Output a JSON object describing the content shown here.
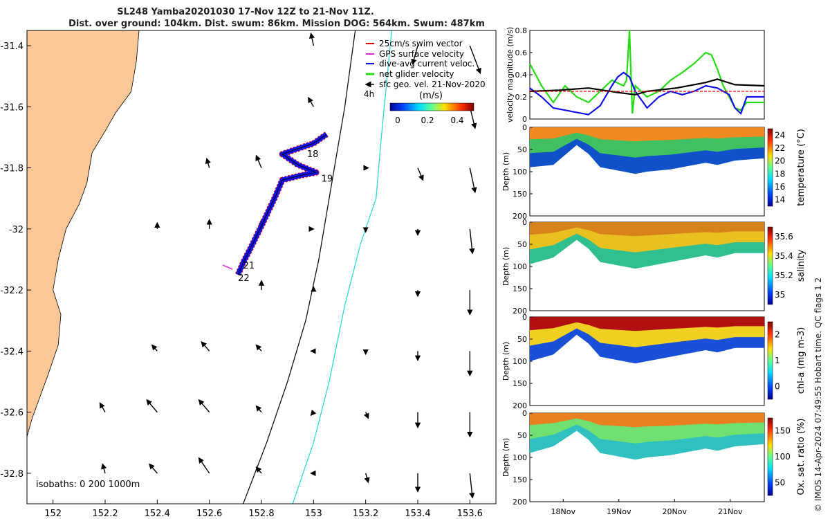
{
  "title_line1": "SL248 Yamba20201030 17-Nov 12Z to 21-Nov 11Z.",
  "title_line2": "Dist. over ground: 104km. Dist. swum: 86km. Mission DOG: 564km. Swum: 487km",
  "credit": "© IMOS 14-Apr-2024 07:49:55 Hobart time. QC flags 1  2",
  "colors": {
    "land": "#f9c896",
    "swim": "#e8000b",
    "gps": "#e020e0",
    "current": "#1010e8",
    "net": "#22dd11",
    "sfc": "#000000",
    "isobath": "#111111",
    "isobath1000": "#30d8d8"
  },
  "chart_data": [
    {
      "type": "map",
      "xlim": [
        151.9,
        153.7
      ],
      "ylim": [
        -32.9,
        -31.35
      ],
      "xticks": [
        "152",
        "152.2",
        "152.4",
        "152.6",
        "152.8",
        "153",
        "153.2",
        "153.4",
        "153.6"
      ],
      "yticks": [
        "-31.4",
        "-31.6",
        "-31.8",
        "-32",
        "-32.2",
        "-32.4",
        "-32.6",
        "-32.8"
      ],
      "legend": [
        "25cm/s swim vector",
        "GPS surface velocity",
        "dive-avg current veloc.",
        "net glider velocity",
        "sfc geo. vel. 21-Nov-2020"
      ],
      "legend_scale_label": "4h",
      "colorbar": {
        "label": "(m/s)",
        "ticks": [
          "0",
          "0.2",
          "0.4"
        ]
      },
      "isobath_note": "isobaths: 0   200  1000m",
      "track_labels": [
        {
          "text": "18",
          "lon": 152.975,
          "lat": -31.765
        },
        {
          "text": "19",
          "lon": 153.03,
          "lat": -31.845
        },
        {
          "text": "21",
          "lon": 152.73,
          "lat": -32.13
        },
        {
          "text": "22",
          "lon": 152.71,
          "lat": -32.17
        }
      ],
      "glider_track": [
        [
          153.05,
          -31.69
        ],
        [
          153.0,
          -31.72
        ],
        [
          152.93,
          -31.74
        ],
        [
          152.88,
          -31.755
        ],
        [
          152.94,
          -31.79
        ],
        [
          153.01,
          -31.815
        ],
        [
          152.95,
          -31.825
        ],
        [
          152.88,
          -31.84
        ],
        [
          152.85,
          -31.9
        ],
        [
          152.8,
          -31.99
        ],
        [
          152.76,
          -32.06
        ],
        [
          152.73,
          -32.11
        ],
        [
          152.71,
          -32.15
        ]
      ],
      "isobath_200": [
        [
          153.16,
          -31.35
        ],
        [
          153.12,
          -31.6
        ],
        [
          153.06,
          -31.9
        ],
        [
          153.02,
          -32.1
        ],
        [
          152.97,
          -32.3
        ],
        [
          152.9,
          -32.5
        ],
        [
          152.82,
          -32.7
        ],
        [
          152.73,
          -32.9
        ]
      ],
      "isobath_1000": [
        [
          153.3,
          -31.35
        ],
        [
          153.26,
          -31.7
        ],
        [
          153.24,
          -31.9
        ],
        [
          153.18,
          -32.05
        ],
        [
          153.12,
          -32.25
        ],
        [
          153.06,
          -32.5
        ],
        [
          153.0,
          -32.7
        ],
        [
          152.92,
          -32.9
        ]
      ],
      "coastline": [
        [
          151.9,
          -31.35
        ],
        [
          152.33,
          -31.35
        ],
        [
          152.32,
          -31.45
        ],
        [
          152.3,
          -31.55
        ],
        [
          152.24,
          -31.62
        ],
        [
          152.2,
          -31.68
        ],
        [
          152.15,
          -31.75
        ],
        [
          152.13,
          -31.85
        ],
        [
          152.1,
          -31.92
        ],
        [
          152.05,
          -32.0
        ],
        [
          152.02,
          -32.1
        ],
        [
          152.0,
          -32.2
        ],
        [
          152.03,
          -32.28
        ],
        [
          152.02,
          -32.38
        ],
        [
          151.98,
          -32.48
        ],
        [
          151.95,
          -32.55
        ],
        [
          151.92,
          -32.62
        ],
        [
          151.9,
          -32.68
        ]
      ],
      "current_arrows": [
        [
          153.0,
          -31.4,
          -0.01,
          0.04
        ],
        [
          153.4,
          -31.4,
          -0.02,
          -0.06
        ],
        [
          153.6,
          -31.4,
          0.04,
          -0.09
        ],
        [
          153.0,
          -31.6,
          -0.02,
          0.03
        ],
        [
          153.6,
          -31.6,
          0.02,
          -0.07
        ],
        [
          152.6,
          -31.8,
          -0.01,
          0.03
        ],
        [
          152.8,
          -31.8,
          -0.02,
          0.04
        ],
        [
          153.2,
          -31.8,
          0.01,
          0.0
        ],
        [
          153.4,
          -31.8,
          0.02,
          -0.04
        ],
        [
          153.6,
          -31.8,
          0.02,
          -0.08
        ],
        [
          152.4,
          -32.0,
          0.0,
          0.02
        ],
        [
          152.6,
          -32.0,
          0.0,
          0.03
        ],
        [
          152.8,
          -32.0,
          0.0,
          0.03
        ],
        [
          153.0,
          -32.0,
          0.0,
          0.0
        ],
        [
          153.2,
          -32.0,
          0.0,
          -0.01
        ],
        [
          153.4,
          -32.0,
          0.0,
          -0.02
        ],
        [
          153.6,
          -32.0,
          0.01,
          -0.08
        ],
        [
          152.8,
          -32.2,
          0.0,
          0.03
        ],
        [
          153.0,
          -32.2,
          0.0,
          0.01
        ],
        [
          153.4,
          -32.2,
          0.0,
          -0.02
        ],
        [
          153.6,
          -32.2,
          0.0,
          -0.08
        ],
        [
          152.4,
          -32.4,
          -0.02,
          0.02
        ],
        [
          152.6,
          -32.4,
          -0.03,
          0.03
        ],
        [
          152.8,
          -32.4,
          -0.02,
          0.02
        ],
        [
          153.0,
          -32.4,
          -0.01,
          0.0
        ],
        [
          153.2,
          -32.4,
          0.0,
          -0.01
        ],
        [
          153.4,
          -32.4,
          0.0,
          -0.03
        ],
        [
          153.6,
          -32.4,
          0.0,
          -0.08
        ],
        [
          152.2,
          -32.6,
          -0.02,
          0.03
        ],
        [
          152.4,
          -32.6,
          -0.04,
          0.04
        ],
        [
          152.6,
          -32.6,
          -0.04,
          0.04
        ],
        [
          152.8,
          -32.6,
          -0.02,
          0.02
        ],
        [
          153.0,
          -32.6,
          -0.01,
          -0.01
        ],
        [
          153.2,
          -32.6,
          0.01,
          -0.02
        ],
        [
          153.4,
          -32.6,
          0.0,
          -0.05
        ],
        [
          153.6,
          -32.6,
          0.0,
          -0.08
        ],
        [
          152.2,
          -32.8,
          -0.01,
          0.03
        ],
        [
          152.4,
          -32.8,
          -0.03,
          0.03
        ],
        [
          152.6,
          -32.8,
          -0.04,
          0.05
        ],
        [
          152.8,
          -32.8,
          -0.02,
          0.02
        ],
        [
          153.0,
          -32.8,
          -0.01,
          0.0
        ],
        [
          153.2,
          -32.8,
          0.01,
          -0.03
        ],
        [
          153.4,
          -32.8,
          0.0,
          -0.06
        ],
        [
          153.6,
          -32.8,
          0.01,
          -0.08
        ]
      ]
    },
    {
      "type": "line",
      "ylabel": "velocity magnitude (m/s)",
      "ylim": [
        0,
        0.8
      ],
      "yticks": [
        "0",
        "0.2",
        "0.4",
        "0.6",
        "0.8"
      ],
      "xlim": [
        0,
        4
      ],
      "series": [
        {
          "color": "#22dd11",
          "x": [
            0,
            0.2,
            0.4,
            0.6,
            0.8,
            1.0,
            1.2,
            1.4,
            1.6,
            1.65,
            1.7,
            1.75,
            1.8,
            2.0,
            2.2,
            2.4,
            2.6,
            2.8,
            2.9,
            3.0,
            3.1,
            3.2,
            3.3,
            3.4,
            3.5,
            3.6,
            3.7,
            4.0
          ],
          "y": [
            0.5,
            0.3,
            0.15,
            0.3,
            0.2,
            0.15,
            0.25,
            0.35,
            0.3,
            0.35,
            0.8,
            0.05,
            0.3,
            0.2,
            0.25,
            0.35,
            0.42,
            0.5,
            0.55,
            0.6,
            0.58,
            0.45,
            0.3,
            0.2,
            0.1,
            0.08,
            0.15,
            0.15
          ]
        },
        {
          "color": "#1010e8",
          "x": [
            0,
            0.2,
            0.4,
            0.6,
            0.8,
            1.0,
            1.2,
            1.4,
            1.5,
            1.6,
            1.7,
            1.8,
            2.0,
            2.2,
            2.4,
            2.6,
            2.8,
            3.0,
            3.2,
            3.4,
            3.5,
            3.6,
            3.7,
            4.0
          ],
          "y": [
            0.28,
            0.2,
            0.1,
            0.08,
            0.06,
            0.04,
            0.12,
            0.3,
            0.38,
            0.42,
            0.38,
            0.25,
            0.1,
            0.2,
            0.25,
            0.22,
            0.25,
            0.3,
            0.28,
            0.22,
            0.1,
            0.05,
            0.2,
            0.2
          ]
        },
        {
          "color": "#000000",
          "x": [
            0,
            0.5,
            1.0,
            1.5,
            1.8,
            2.0,
            2.5,
            3.0,
            3.2,
            3.5,
            4.0
          ],
          "y": [
            0.25,
            0.26,
            0.28,
            0.24,
            0.22,
            0.25,
            0.28,
            0.33,
            0.36,
            0.31,
            0.3
          ]
        },
        {
          "color": "#e8000b",
          "x": [
            0,
            4
          ],
          "y": [
            0.25,
            0.25
          ]
        }
      ]
    },
    {
      "type": "heatmap",
      "ylabel": "Depth (m)",
      "colorbar_label": "temperature (°C)",
      "colorbar_ticks": [
        "14",
        "16",
        "18",
        "20",
        "22",
        "24"
      ],
      "ylim": [
        0,
        200
      ],
      "yticks": [
        "0",
        "50",
        "100",
        "150",
        "200"
      ],
      "bottom_depth": [
        [
          0,
          90
        ],
        [
          0.4,
          85
        ],
        [
          0.8,
          40
        ],
        [
          1.0,
          60
        ],
        [
          1.2,
          90
        ],
        [
          1.6,
          100
        ],
        [
          1.8,
          105
        ],
        [
          2.0,
          100
        ],
        [
          2.4,
          95
        ],
        [
          2.8,
          85
        ],
        [
          3.0,
          80
        ],
        [
          3.2,
          85
        ],
        [
          3.5,
          75
        ],
        [
          4.0,
          70
        ]
      ]
    },
    {
      "type": "heatmap",
      "ylabel": "Depth (m)",
      "colorbar_label": "salinity",
      "colorbar_ticks": [
        "35",
        "35.2",
        "35.4",
        "35.6"
      ],
      "ylim": [
        0,
        200
      ],
      "yticks": [
        "0",
        "50",
        "100",
        "150",
        "200"
      ],
      "bottom_depth": [
        [
          0,
          95
        ],
        [
          0.4,
          80
        ],
        [
          0.8,
          40
        ],
        [
          1.0,
          60
        ],
        [
          1.2,
          90
        ],
        [
          1.6,
          100
        ],
        [
          1.8,
          105
        ],
        [
          2.0,
          100
        ],
        [
          2.4,
          90
        ],
        [
          2.8,
          80
        ],
        [
          3.0,
          75
        ],
        [
          3.2,
          80
        ],
        [
          3.5,
          70
        ],
        [
          4.0,
          70
        ]
      ]
    },
    {
      "type": "heatmap",
      "ylabel": "Depth (m)",
      "colorbar_label": "chl-a (mg m-3)",
      "colorbar_ticks": [
        "0",
        "1",
        "2"
      ],
      "ylim": [
        0,
        200
      ],
      "yticks": [
        "0",
        "50",
        "100",
        "150",
        "200"
      ],
      "bottom_depth": [
        [
          0,
          100
        ],
        [
          0.4,
          85
        ],
        [
          0.8,
          40
        ],
        [
          1.0,
          60
        ],
        [
          1.2,
          90
        ],
        [
          1.6,
          100
        ],
        [
          1.8,
          105
        ],
        [
          2.0,
          100
        ],
        [
          2.4,
          90
        ],
        [
          2.8,
          80
        ],
        [
          3.0,
          75
        ],
        [
          3.2,
          80
        ],
        [
          3.5,
          70
        ],
        [
          4.0,
          70
        ]
      ]
    },
    {
      "type": "heatmap",
      "ylabel": "Depth (m)",
      "colorbar_label": "Ox. sat. ratio (%)",
      "colorbar_ticks": [
        "50",
        "100",
        "150"
      ],
      "ylim": [
        0,
        200
      ],
      "yticks": [
        "0",
        "50",
        "100",
        "150",
        "200"
      ],
      "xticks": [
        "18Nov",
        "19Nov",
        "20Nov",
        "21Nov"
      ],
      "bottom_depth": [
        [
          0,
          90
        ],
        [
          0.4,
          75
        ],
        [
          0.8,
          40
        ],
        [
          1.0,
          60
        ],
        [
          1.2,
          90
        ],
        [
          1.6,
          100
        ],
        [
          1.8,
          105
        ],
        [
          2.0,
          100
        ],
        [
          2.4,
          95
        ],
        [
          2.8,
          85
        ],
        [
          3.0,
          80
        ],
        [
          3.2,
          85
        ],
        [
          3.5,
          75
        ],
        [
          4.0,
          70
        ]
      ]
    }
  ]
}
